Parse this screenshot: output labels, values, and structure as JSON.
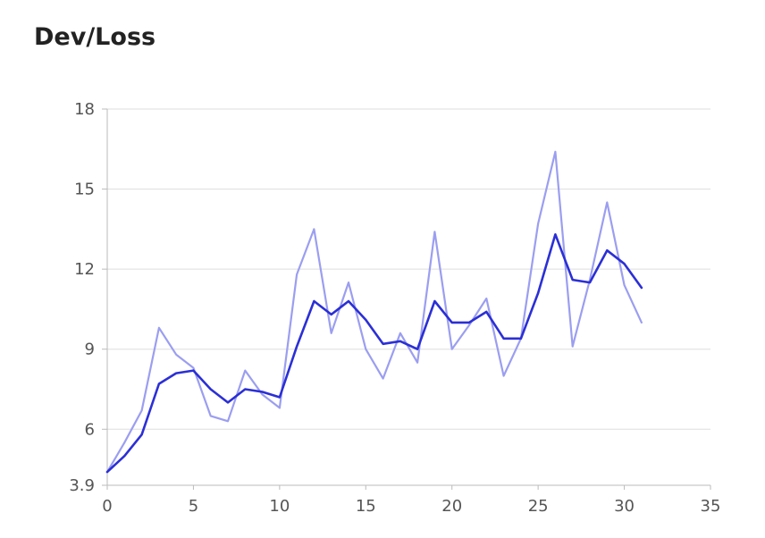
{
  "title": "Dev/Loss",
  "chart_data": {
    "type": "line",
    "title": "Dev/Loss",
    "xlim": [
      0,
      35
    ],
    "ylim": [
      3.9,
      18
    ],
    "xticks": [
      0,
      5,
      10,
      15,
      20,
      25,
      30,
      35
    ],
    "yticks": [
      3.9,
      6,
      9,
      12,
      15,
      18
    ],
    "grid": true,
    "colors": {
      "raw": "#9b9ef0",
      "smoothed": "#2b2fd6",
      "grid": "#dddddd",
      "axis": "#bbbbbb"
    },
    "x": [
      0,
      1,
      2,
      3,
      4,
      5,
      6,
      7,
      8,
      9,
      10,
      11,
      12,
      13,
      14,
      15,
      16,
      17,
      18,
      19,
      20,
      21,
      22,
      23,
      24,
      25,
      26,
      27,
      28,
      29,
      30,
      31
    ],
    "series": [
      {
        "values": [
          4.4,
          5.5,
          6.7,
          9.8,
          8.8,
          8.3,
          6.5,
          6.3,
          8.2,
          7.3,
          6.8,
          11.8,
          13.5,
          9.6,
          11.5,
          9.0,
          7.9,
          9.6,
          8.5,
          13.4,
          9.0,
          9.9,
          10.9,
          8.0,
          9.4,
          13.7,
          16.4,
          9.1,
          11.6,
          14.5,
          11.4,
          10.0
        ]
      },
      {
        "values": [
          4.4,
          5.0,
          5.8,
          7.7,
          8.1,
          8.2,
          7.5,
          7.0,
          7.5,
          7.4,
          7.2,
          9.1,
          10.8,
          10.3,
          10.8,
          10.1,
          9.2,
          9.3,
          9.0,
          10.8,
          10.0,
          10.0,
          10.4,
          9.4,
          9.4,
          11.1,
          13.3,
          11.6,
          11.5,
          12.7,
          12.2,
          11.3
        ]
      }
    ]
  }
}
